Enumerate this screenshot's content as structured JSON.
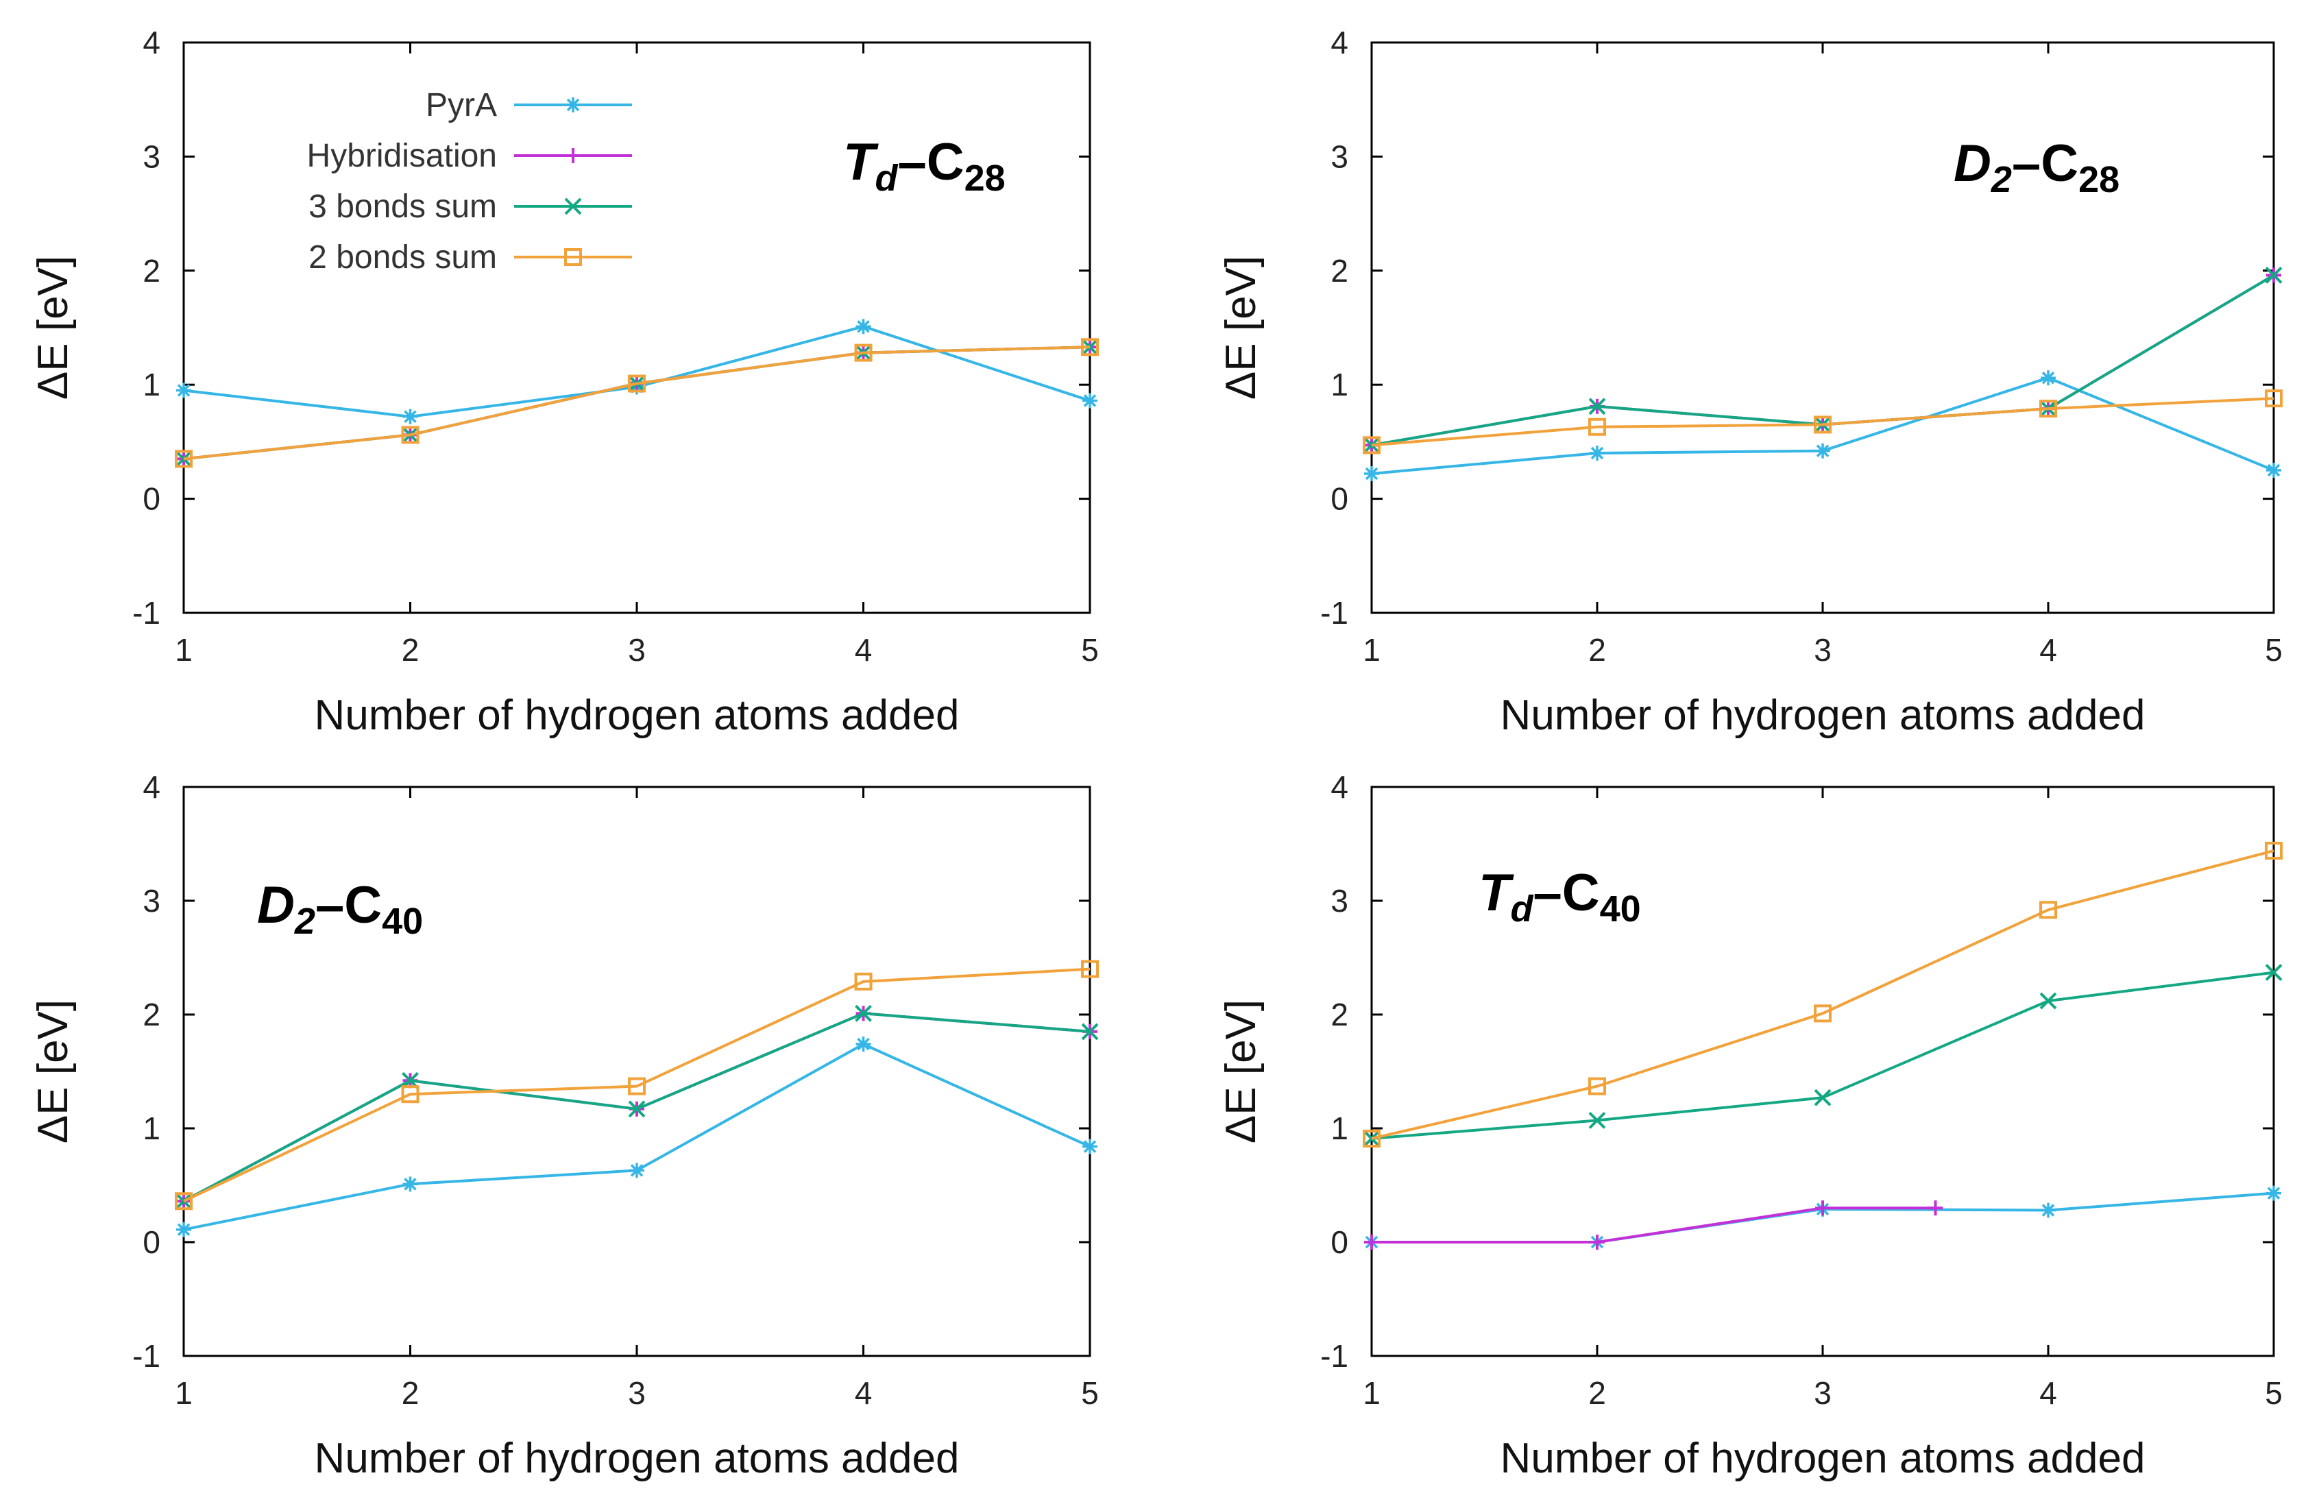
{
  "figure": {
    "x_categories": [
      1,
      2,
      3,
      4,
      5
    ],
    "y_ticks": [
      -1,
      0,
      1,
      2,
      3,
      4
    ],
    "colors": {
      "PyrA": "#35b6e6",
      "Hybridisation": "#c330d8",
      "3 bonds sum": "#13a883",
      "2 bonds sum": "#f2a23a"
    }
  },
  "chart_data": [
    {
      "type": "line",
      "panel": "top-left",
      "title": {
        "symbol": "T",
        "sub1": "d",
        "dash": "–C",
        "sub2": "28"
      },
      "xlabel": "Number of hydrogen atoms added",
      "ylabel": "ΔE [eV]",
      "ylim": [
        -1,
        4
      ],
      "x": [
        1,
        2,
        3,
        4,
        5
      ],
      "legend": {
        "placement": "top-left",
        "entries": [
          "PyrA",
          "Hybridisation",
          "3 bonds sum",
          "2 bonds sum"
        ]
      },
      "series": [
        {
          "name": "PyrA",
          "marker": "star",
          "values": [
            0.95,
            0.72,
            0.98,
            1.51,
            0.86
          ]
        },
        {
          "name": "Hybridisation",
          "marker": "plus",
          "values": [
            0.35,
            0.56,
            1.01,
            1.28,
            1.33
          ]
        },
        {
          "name": "3 bonds sum",
          "marker": "x",
          "values": [
            0.35,
            0.56,
            1.01,
            1.28,
            1.33
          ]
        },
        {
          "name": "2 bonds sum",
          "marker": "square",
          "values": [
            0.35,
            0.56,
            1.01,
            1.28,
            1.33
          ]
        }
      ]
    },
    {
      "type": "line",
      "panel": "top-right",
      "title": {
        "symbol": "D",
        "sub1": "2",
        "dash": "–C",
        "sub2": "28"
      },
      "xlabel": "Number of hydrogen atoms added",
      "ylabel": "ΔE [eV]",
      "ylim": [
        -1,
        4
      ],
      "x": [
        1,
        2,
        3,
        4,
        5
      ],
      "series": [
        {
          "name": "PyrA",
          "marker": "star",
          "values": [
            0.22,
            0.4,
            0.42,
            1.06,
            0.25
          ]
        },
        {
          "name": "Hybridisation",
          "marker": "plus",
          "values": [
            0.47,
            0.81,
            0.65,
            0.79,
            1.96
          ]
        },
        {
          "name": "3 bonds sum",
          "marker": "x",
          "values": [
            0.47,
            0.81,
            0.65,
            0.79,
            1.96
          ]
        },
        {
          "name": "2 bonds sum",
          "marker": "square",
          "values": [
            0.47,
            0.63,
            0.65,
            0.79,
            0.88
          ]
        }
      ]
    },
    {
      "type": "line",
      "panel": "bottom-left",
      "title": {
        "symbol": "D",
        "sub1": "2",
        "dash": "–C",
        "sub2": "40"
      },
      "xlabel": "Number of hydrogen atoms added",
      "ylabel": "ΔE [eV]",
      "ylim": [
        -1,
        4
      ],
      "x": [
        1,
        2,
        3,
        4,
        5
      ],
      "series": [
        {
          "name": "PyrA",
          "marker": "star",
          "values": [
            0.11,
            0.51,
            0.63,
            1.74,
            0.84
          ]
        },
        {
          "name": "Hybridisation",
          "marker": "plus",
          "values": [
            0.36,
            1.42,
            1.17,
            2.01,
            1.85
          ]
        },
        {
          "name": "3 bonds sum",
          "marker": "x",
          "values": [
            0.36,
            1.42,
            1.17,
            2.01,
            1.85
          ]
        },
        {
          "name": "2 bonds sum",
          "marker": "square",
          "values": [
            0.36,
            1.3,
            1.37,
            2.29,
            2.4
          ]
        }
      ]
    },
    {
      "type": "line",
      "panel": "bottom-right",
      "title": {
        "symbol": "T",
        "sub1": "d",
        "dash": "–C",
        "sub2": "40"
      },
      "xlabel": "Number of hydrogen atoms added",
      "ylabel": "ΔE [eV]",
      "ylim": [
        -1,
        4
      ],
      "x": [
        1,
        2,
        3,
        4,
        5
      ],
      "series": [
        {
          "name": "PyrA",
          "marker": "star",
          "values": [
            0.0,
            0.0,
            0.29,
            0.28,
            0.43
          ]
        },
        {
          "name": "Hybridisation",
          "marker": "plus",
          "x": [
            1,
            2,
            3,
            3.5
          ],
          "values": [
            0.0,
            0.0,
            0.3,
            0.3
          ]
        },
        {
          "name": "3 bonds sum",
          "marker": "x",
          "values": [
            0.91,
            1.07,
            1.27,
            2.12,
            2.37
          ]
        },
        {
          "name": "2 bonds sum",
          "marker": "square",
          "values": [
            0.91,
            1.37,
            2.01,
            2.92,
            3.44
          ]
        }
      ]
    }
  ]
}
